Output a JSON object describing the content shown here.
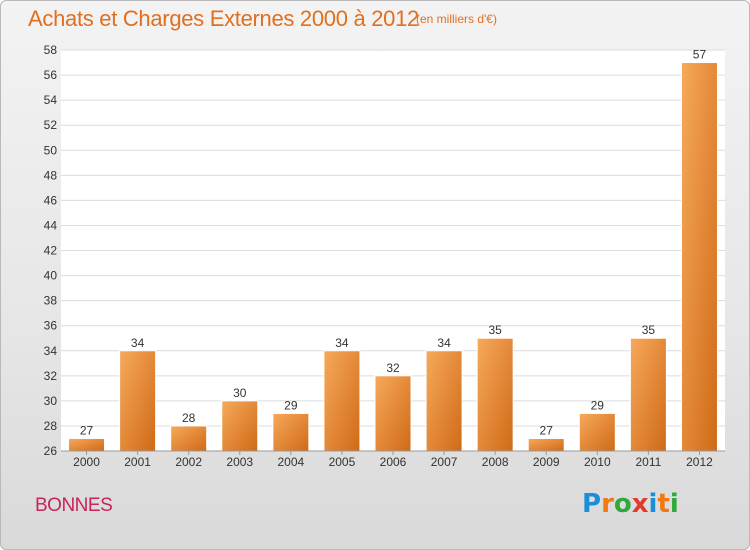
{
  "title": "Achats et Charges Externes 2000 à 2012",
  "subtitle": "(en milliers d'€)",
  "commune": "BONNES",
  "logo": {
    "text": "Proxiti",
    "letters": [
      "P",
      "r",
      "o",
      "x",
      "i",
      "t",
      "i"
    ],
    "letter_colors": [
      "#1a8fd8",
      "#f07a12",
      "#2fa83c",
      "#e23a2a",
      "#1a8fd8",
      "#f07a12",
      "#2fa83c"
    ]
  },
  "colors": {
    "title": "#e06f1f",
    "commune": "#c7245a",
    "bar_light": "#f6a455",
    "bar_dark": "#cf6a16",
    "grid": "#dcdcdc",
    "text": "#333333"
  },
  "chart_data": {
    "type": "bar",
    "categories": [
      "2000",
      "2001",
      "2002",
      "2003",
      "2004",
      "2005",
      "2006",
      "2007",
      "2008",
      "2009",
      "2010",
      "2011",
      "2012"
    ],
    "values": [
      27,
      34,
      28,
      30,
      29,
      34,
      32,
      34,
      35,
      27,
      29,
      35,
      57
    ],
    "title": "Achats et Charges Externes 2000 à 2012",
    "subtitle": "(en milliers d'€)",
    "xlabel": "",
    "ylabel": "",
    "ylim": [
      26,
      58
    ],
    "yticks": [
      26,
      28,
      30,
      32,
      34,
      36,
      38,
      40,
      42,
      44,
      46,
      48,
      50,
      52,
      54,
      56,
      58
    ],
    "grid": true,
    "data_labels": true
  }
}
